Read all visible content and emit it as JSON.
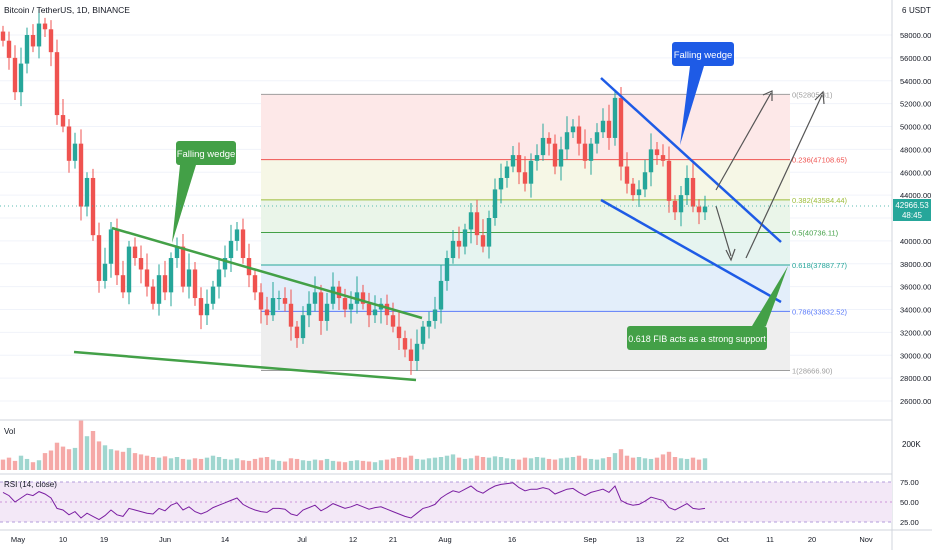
{
  "header": {
    "symbol": "Bitcoin / TetherUS, 1D, BINANCE",
    "currency": "USDT",
    "currency_prefix": "6"
  },
  "colors": {
    "up": "#26a69a",
    "down": "#ef5350",
    "wedge_green": "#43a047",
    "wedge_blue": "#1e5be6",
    "rsi_line": "#7b1fa2",
    "rsi_band": "#f1e6f5",
    "price_badge": "#26a69a"
  },
  "price_axis": {
    "ticks": [
      "58000.00",
      "56000.00",
      "54000.00",
      "52000.00",
      "50000.00",
      "48000.00",
      "46000.00",
      "44000.00",
      "42000.00",
      "40000.00",
      "38000.00",
      "36000.00",
      "34000.00",
      "32000.00",
      "30000.00",
      "28000.00",
      "26000.00"
    ],
    "last_price": "42966.53",
    "countdown": "48:45"
  },
  "time_axis": {
    "labels": [
      "May",
      "10",
      "19",
      "Jun",
      "14",
      "Jul",
      "12",
      "21",
      "Aug",
      "16",
      "Sep",
      "13",
      "22",
      "Oct",
      "11",
      "20",
      "Nov"
    ]
  },
  "fib_levels": [
    {
      "ratio": "0",
      "label": "0(52805.31)",
      "price": 52805.31,
      "color": "#9e9e9e"
    },
    {
      "ratio": "0.236",
      "label": "0.236(47108.65)",
      "price": 47108.65,
      "color": "#ef5350"
    },
    {
      "ratio": "0.382",
      "label": "0.382(43584.44)",
      "price": 43584.44,
      "color": "#9dbd3a"
    },
    {
      "ratio": "0.5",
      "label": "0.5(40736.11)",
      "price": 40736.11,
      "color": "#43a047"
    },
    {
      "ratio": "0.618",
      "label": "0.618(37887.77)",
      "price": 37887.77,
      "color": "#26a69a"
    },
    {
      "ratio": "0.786",
      "label": "0.786(33832.52)",
      "price": 33832.52,
      "color": "#5c7cfa"
    },
    {
      "ratio": "1",
      "label": "1(28666.90)",
      "price": 28666.9,
      "color": "#9e9e9e"
    }
  ],
  "annotations": {
    "green_wedge_label": "Falling wedge",
    "blue_wedge_label": "Falling wedge",
    "support_note": "0.618 FIB acts as a strong support"
  },
  "volume_pane": {
    "label": "Vol",
    "tick": "200K"
  },
  "rsi_pane": {
    "label": "RSI (14, close)",
    "ticks": [
      "75.00",
      "50.00",
      "25.00"
    ]
  },
  "chart_data": {
    "type": "candlestick",
    "symbol": "BTCUSDT",
    "interval": "1D",
    "ylim": [
      24500,
      60500
    ],
    "estimated_closes": [
      57500,
      56000,
      53000,
      55500,
      58000,
      57000,
      59000,
      58500,
      56500,
      51000,
      50000,
      47000,
      48500,
      43000,
      45500,
      40500,
      36500,
      38000,
      41000,
      37000,
      35500,
      39500,
      38500,
      37500,
      36000,
      34500,
      37000,
      35500,
      38500,
      39500,
      36000,
      37500,
      35000,
      33500,
      34500,
      36000,
      37500,
      38500,
      40000,
      41000,
      38500,
      37000,
      35500,
      34000,
      33500,
      35000,
      35000,
      34500,
      32500,
      31500,
      33500,
      34500,
      35500,
      33000,
      34500,
      36000,
      35000,
      34000,
      34500,
      35500,
      34500,
      33500,
      34000,
      34500,
      33500,
      32500,
      31500,
      30500,
      29500,
      31000,
      32500,
      33000,
      34000,
      36500,
      38500,
      40000,
      39500,
      41000,
      42500,
      40500,
      39500,
      42000,
      44500,
      45500,
      46500,
      47500,
      46000,
      45000,
      47000,
      47500,
      49000,
      48500,
      46500,
      48000,
      49500,
      50000,
      48500,
      47000,
      48500,
      49500,
      50500,
      49000,
      52500,
      46500,
      45000,
      44000,
      44500,
      46000,
      48000,
      47500,
      47000,
      43500,
      42500,
      44000,
      45500,
      43000,
      42500,
      43000
    ],
    "volume_note": "Daily volume bars colored by candle direction; spike near mid-May",
    "rsi_note": "RSI(14) oscillating roughly between 25 and 75",
    "series": [
      {
        "name": "Vol",
        "values": [
          80,
          95,
          70,
          110,
          85,
          60,
          75,
          130,
          150,
          210,
          180,
          160,
          170,
          380,
          260,
          300,
          220,
          190,
          160,
          150,
          140,
          170,
          130,
          120,
          110,
          100,
          95,
          105,
          90,
          100,
          85,
          80,
          90,
          85,
          95,
          110,
          100,
          85,
          80,
          90,
          75,
          70,
          85,
          95,
          100,
          80,
          70,
          65,
          90,
          85,
          75,
          70,
          80,
          75,
          85,
          70,
          65,
          60,
          70,
          75,
          70,
          65,
          60,
          75,
          80,
          90,
          100,
          95,
          110,
          85,
          80,
          90,
          95,
          100,
          110,
          120,
          95,
          85,
          90,
          110,
          100,
          95,
          105,
          100,
          90,
          85,
          80,
          95,
          90,
          100,
          95,
          85,
          80,
          90,
          95,
          100,
          110,
          90,
          85,
          80,
          90,
          100,
          130,
          160,
          110,
          95,
          100,
          90,
          85,
          95,
          120,
          140,
          100,
          90,
          85,
          95,
          80,
          90
        ]
      },
      {
        "name": "RSI (14, close)",
        "values": [
          62,
          58,
          50,
          55,
          60,
          58,
          63,
          60,
          55,
          42,
          40,
          34,
          38,
          30,
          36,
          32,
          28,
          33,
          40,
          34,
          32,
          42,
          40,
          38,
          36,
          35,
          42,
          39,
          46,
          49,
          40,
          44,
          38,
          35,
          38,
          43,
          46,
          49,
          52,
          55,
          47,
          43,
          40,
          38,
          37,
          42,
          42,
          41,
          35,
          33,
          40,
          43,
          46,
          39,
          43,
          48,
          45,
          42,
          44,
          47,
          44,
          41,
          43,
          44,
          41,
          38,
          35,
          32,
          30,
          36,
          42,
          44,
          47,
          55,
          60,
          64,
          62,
          66,
          70,
          64,
          61,
          66,
          70,
          72,
          73,
          74,
          68,
          64,
          66,
          66,
          68,
          66,
          60,
          63,
          66,
          67,
          62,
          58,
          62,
          64,
          66,
          62,
          70,
          52,
          48,
          46,
          47,
          51,
          56,
          54,
          52,
          43,
          40,
          44,
          48,
          42,
          41,
          42
        ]
      }
    ]
  }
}
